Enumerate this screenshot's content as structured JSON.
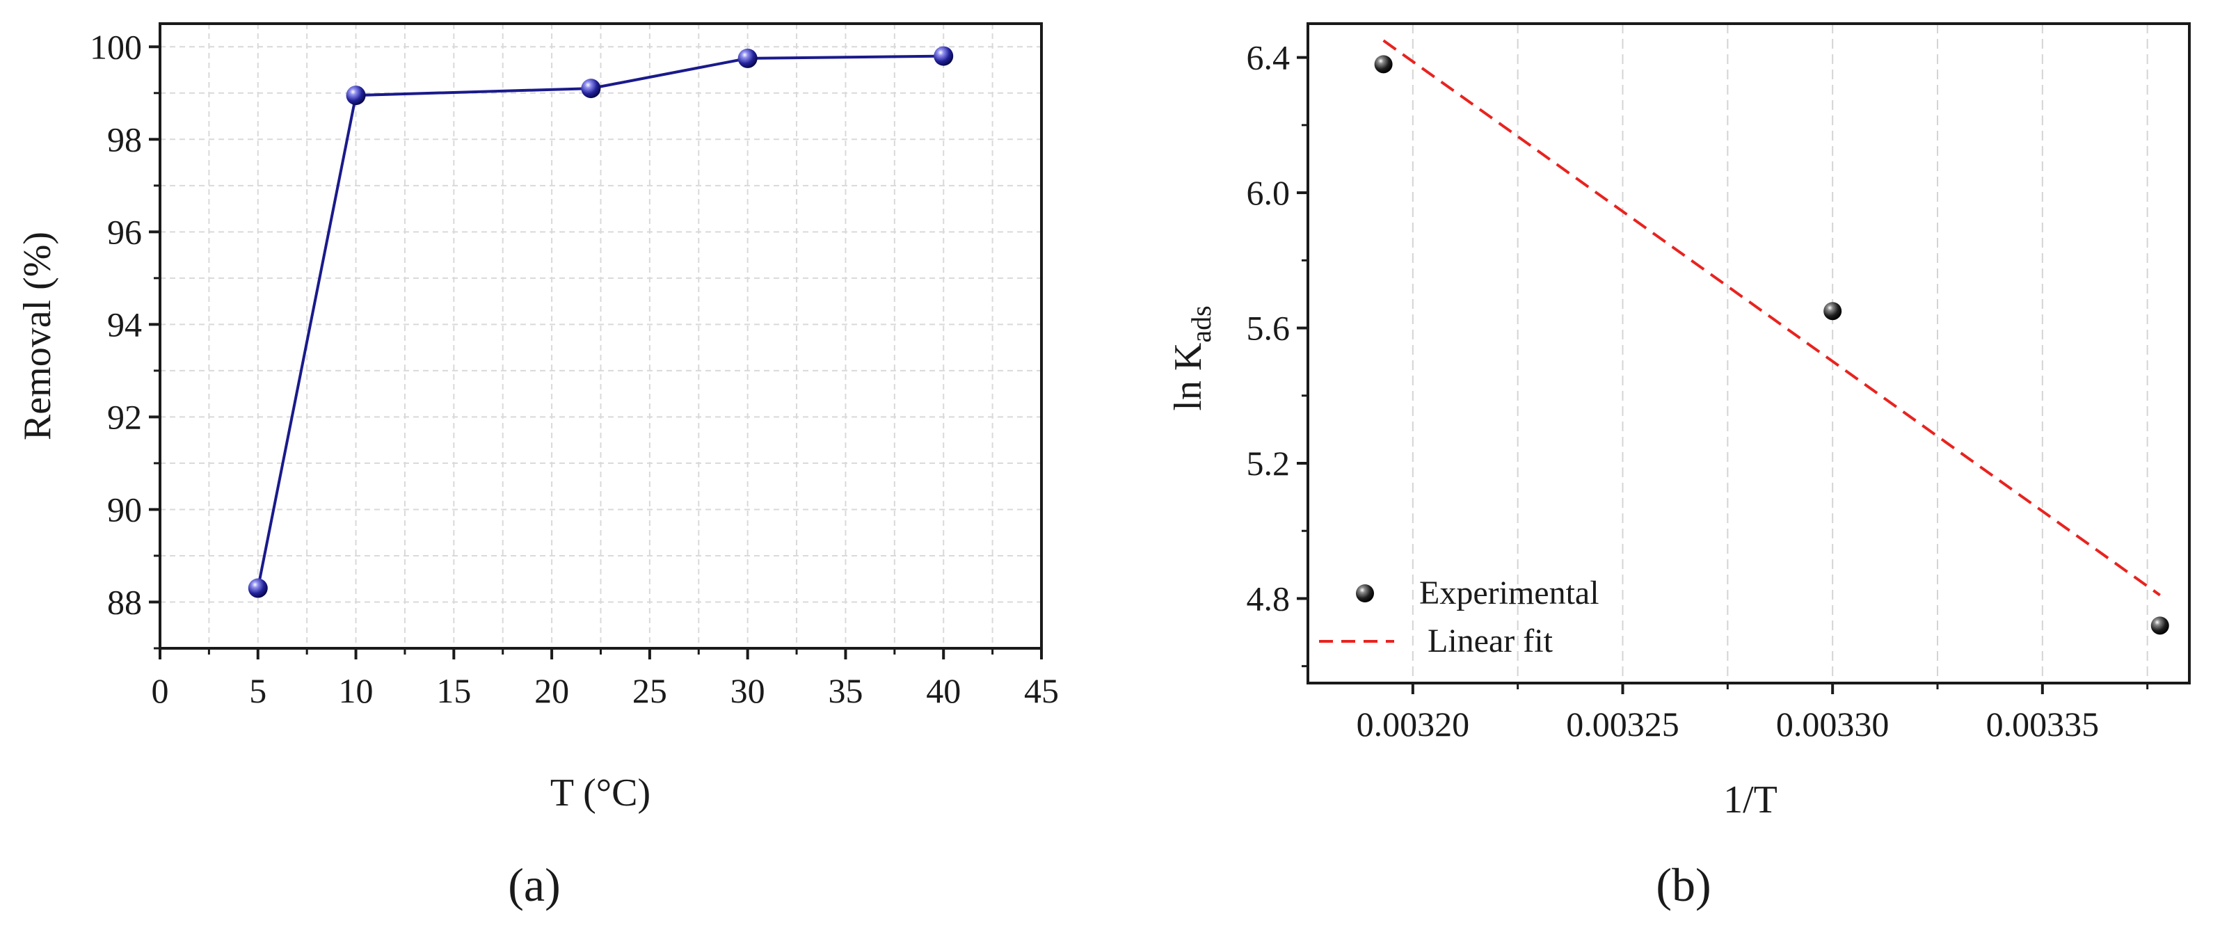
{
  "chart_data": [
    {
      "type": "line",
      "panel_label": "(a)",
      "title": "",
      "xlabel": "T (°C)",
      "ylabel": "Removal (%)",
      "xlim": [
        0,
        45
      ],
      "ylim": [
        87,
        100.5
      ],
      "x_ticks": [
        0,
        5,
        10,
        15,
        20,
        25,
        30,
        35,
        40,
        45
      ],
      "y_ticks": [
        88,
        90,
        92,
        94,
        96,
        98,
        100
      ],
      "grid": true,
      "series": [
        {
          "name": "Removal",
          "color": "#1a1a8c",
          "x": [
            5,
            10,
            22,
            30,
            40
          ],
          "values": [
            88.3,
            98.95,
            99.1,
            99.75,
            99.8
          ]
        }
      ]
    },
    {
      "type": "scatter",
      "panel_label": "(b)",
      "title": "",
      "xlabel": "1/T",
      "ylabel_main": "ln K",
      "ylabel_sub": "ads",
      "xlim": [
        0.003175,
        0.003385
      ],
      "ylim": [
        4.55,
        6.5
      ],
      "x_ticks": [
        0.0032,
        0.00325,
        0.0033,
        0.00335
      ],
      "x_tick_labels": [
        "0.00320",
        "0.00325",
        "0.00330",
        "0.00335"
      ],
      "y_ticks": [
        4.8,
        5.2,
        5.6,
        6.0,
        6.4
      ],
      "y_tick_labels": [
        "4.8",
        "5.2",
        "5.6",
        "6.0",
        "6.4"
      ],
      "grid": true,
      "legend_position": "bottom-left",
      "series": [
        {
          "name": "Experimental",
          "kind": "points",
          "color": "#111111",
          "x": [
            0.003193,
            0.0033,
            0.003378
          ],
          "values": [
            6.38,
            5.65,
            4.72
          ]
        },
        {
          "name": "Linear fit",
          "kind": "dashed-line",
          "color": "#e8231f",
          "x": [
            0.003193,
            0.003378
          ],
          "values": [
            6.45,
            4.81
          ]
        }
      ]
    }
  ]
}
